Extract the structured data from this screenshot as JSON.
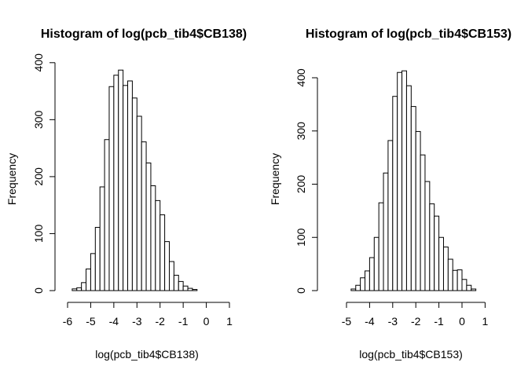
{
  "chart_data": [
    {
      "type": "bar",
      "title": "Histogram of log(pcb_tib4$CB138)",
      "xlabel": "log(pcb_tib4$CB138)",
      "ylabel": "Frequency",
      "bin_width": 0.2,
      "bin_start": -5.8,
      "values": [
        3,
        5,
        14,
        38,
        65,
        111,
        182,
        265,
        358,
        378,
        387,
        360,
        368,
        338,
        306,
        261,
        224,
        184,
        158,
        133,
        86,
        51,
        27,
        16,
        8,
        4,
        2
      ],
      "xticks": [
        -6,
        -5,
        -4,
        -3,
        -2,
        -1,
        0,
        1
      ],
      "xtick_labels": [
        "-6",
        "-5",
        "-4",
        "-3",
        "-2",
        "-1",
        "0",
        "1"
      ],
      "yticks": [
        0,
        100,
        200,
        300,
        400
      ],
      "ytick_labels": [
        "0",
        "100",
        "200",
        "300",
        "400"
      ],
      "xlim": [
        -6,
        1
      ],
      "ylim": [
        0,
        400
      ]
    },
    {
      "type": "bar",
      "title": "Histogram of log(pcb_tib4$CB153)",
      "xlabel": "log(pcb_tib4$CB153)",
      "ylabel": "Frequency",
      "bin_width": 0.2,
      "bin_start": -4.8,
      "values": [
        3,
        10,
        24,
        37,
        62,
        100,
        165,
        221,
        282,
        365,
        410,
        413,
        385,
        346,
        299,
        255,
        205,
        163,
        140,
        100,
        82,
        59,
        38,
        39,
        21,
        10,
        3
      ],
      "xticks": [
        -5,
        -4,
        -3,
        -2,
        -1,
        0,
        1
      ],
      "xtick_labels": [
        "-5",
        "-4",
        "-3",
        "-2",
        "-1",
        "0",
        "1"
      ],
      "yticks": [
        0,
        100,
        200,
        300,
        400
      ],
      "ytick_labels": [
        "0",
        "100",
        "200",
        "300",
        "400"
      ],
      "xlim": [
        -5,
        1
      ],
      "ylim": [
        0,
        420
      ]
    }
  ]
}
